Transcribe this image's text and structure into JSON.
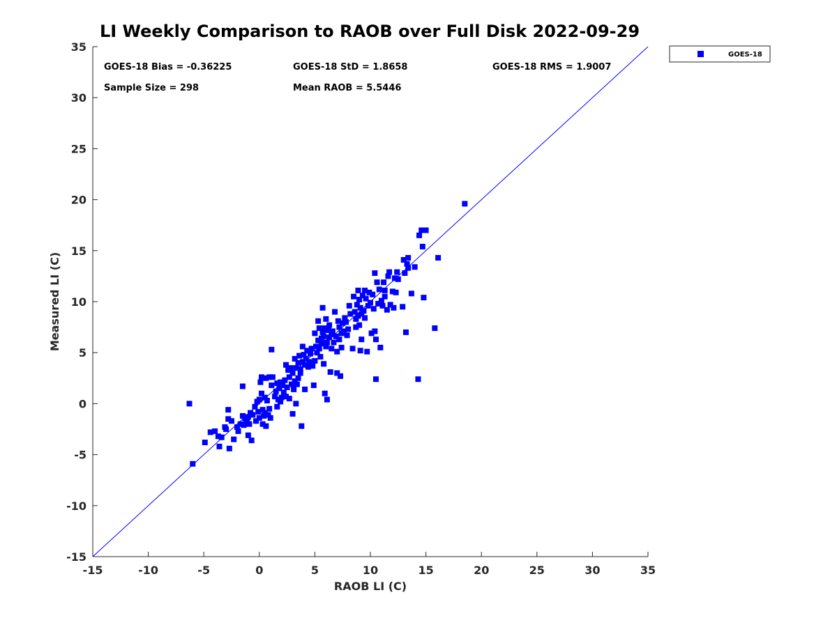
{
  "chart_data": {
    "type": "scatter",
    "title": "LI Weekly Comparison to RAOB over Full Disk 2022-09-29",
    "xlabel": "RAOB LI (C)",
    "ylabel": "Measured LI (C)",
    "xlim": [
      -15,
      35
    ],
    "ylim": [
      -15,
      35
    ],
    "xticks": [
      -15,
      -10,
      -5,
      0,
      5,
      10,
      15,
      20,
      25,
      30,
      35
    ],
    "yticks": [
      -15,
      -10,
      -5,
      0,
      5,
      10,
      15,
      20,
      25,
      30,
      35
    ],
    "grid": false,
    "legend": {
      "position": "outside-top-right",
      "entries": [
        "GOES-18"
      ]
    },
    "reference_line": {
      "from": [
        -15,
        -15
      ],
      "to": [
        35,
        35
      ],
      "color": "#0000ff"
    },
    "marker_color": "#0000ff",
    "annotations": {
      "bias": "GOES-18 Bias = -0.36225",
      "std": "GOES-18 StD = 1.8658",
      "rms": "GOES-18 RMS = 1.9007",
      "sample_size": "Sample Size = 298",
      "mean_raob": "Mean RAOB = 5.5446"
    },
    "series": [
      {
        "name": "GOES-18",
        "points": [
          [
            -6.3,
            0.0
          ],
          [
            -6.0,
            -5.9
          ],
          [
            -4.9,
            -3.8
          ],
          [
            -4.4,
            -2.8
          ],
          [
            -4.0,
            -2.7
          ],
          [
            -3.7,
            -3.2
          ],
          [
            -3.6,
            -4.2
          ],
          [
            -3.4,
            -3.3
          ],
          [
            -3.1,
            -2.3
          ],
          [
            -3.0,
            -2.5
          ],
          [
            -2.8,
            -0.6
          ],
          [
            -2.8,
            -1.5
          ],
          [
            -2.7,
            -4.4
          ],
          [
            -2.5,
            -1.7
          ],
          [
            -2.3,
            -3.5
          ],
          [
            -2.0,
            -2.3
          ],
          [
            -1.9,
            -2.7
          ],
          [
            -1.7,
            -2.0
          ],
          [
            -1.5,
            1.7
          ],
          [
            -1.5,
            -1.2
          ],
          [
            -1.4,
            -2.1
          ],
          [
            -1.3,
            -1.4
          ],
          [
            -1.2,
            -1.9
          ],
          [
            -1.1,
            -1.6
          ],
          [
            -1.0,
            -3.1
          ],
          [
            -1.0,
            -1.3
          ],
          [
            -0.9,
            -2.0
          ],
          [
            -0.8,
            -0.9
          ],
          [
            -0.7,
            -3.6
          ],
          [
            -0.6,
            -1.1
          ],
          [
            -0.4,
            -0.3
          ],
          [
            -0.3,
            -1.7
          ],
          [
            -0.2,
            0.2
          ],
          [
            -0.1,
            -0.8
          ],
          [
            0.0,
            0.4
          ],
          [
            0.0,
            -1.4
          ],
          [
            0.1,
            2.1
          ],
          [
            0.2,
            1.0
          ],
          [
            0.2,
            2.6
          ],
          [
            0.3,
            -0.6
          ],
          [
            0.3,
            -2.0
          ],
          [
            0.4,
            -1.2
          ],
          [
            0.5,
            0.6
          ],
          [
            0.5,
            -0.9
          ],
          [
            0.6,
            2.5
          ],
          [
            0.6,
            -2.2
          ],
          [
            0.7,
            0.3
          ],
          [
            0.8,
            -1.1
          ],
          [
            0.9,
            2.6
          ],
          [
            0.9,
            -0.5
          ],
          [
            1.0,
            -1.4
          ],
          [
            1.1,
            1.8
          ],
          [
            1.1,
            5.3
          ],
          [
            1.2,
            2.6
          ],
          [
            1.4,
            0.7
          ],
          [
            1.5,
            1.2
          ],
          [
            1.6,
            2.0
          ],
          [
            1.6,
            -0.3
          ],
          [
            1.7,
            0.4
          ],
          [
            1.8,
            1.5
          ],
          [
            1.9,
            0.2
          ],
          [
            1.9,
            2.1
          ],
          [
            2.0,
            0.6
          ],
          [
            2.1,
            1.8
          ],
          [
            2.2,
            1.1
          ],
          [
            2.3,
            2.3
          ],
          [
            2.4,
            0.7
          ],
          [
            2.4,
            3.8
          ],
          [
            2.5,
            1.6
          ],
          [
            2.6,
            3.3
          ],
          [
            2.7,
            0.5
          ],
          [
            2.7,
            2.6
          ],
          [
            2.8,
            3.5
          ],
          [
            2.9,
            1.9
          ],
          [
            3.0,
            3.0
          ],
          [
            3.0,
            -1.0
          ],
          [
            3.1,
            1.4
          ],
          [
            3.2,
            2.2
          ],
          [
            3.2,
            4.4
          ],
          [
            3.3,
            0.0
          ],
          [
            3.3,
            3.5
          ],
          [
            3.4,
            1.9
          ],
          [
            3.5,
            4.0
          ],
          [
            3.5,
            2.5
          ],
          [
            3.6,
            4.7
          ],
          [
            3.7,
            3.4
          ],
          [
            3.7,
            3.0
          ],
          [
            3.8,
            -2.2
          ],
          [
            3.9,
            5.6
          ],
          [
            3.9,
            4.1
          ],
          [
            4.0,
            4.8
          ],
          [
            4.1,
            1.4
          ],
          [
            4.1,
            3.8
          ],
          [
            4.2,
            4.4
          ],
          [
            4.3,
            5.2
          ],
          [
            4.4,
            3.6
          ],
          [
            4.5,
            4.1
          ],
          [
            4.6,
            4.9
          ],
          [
            4.7,
            5.4
          ],
          [
            4.8,
            3.7
          ],
          [
            4.9,
            1.8
          ],
          [
            5.0,
            6.9
          ],
          [
            5.0,
            4.2
          ],
          [
            5.1,
            5.6
          ],
          [
            5.2,
            5.0
          ],
          [
            5.3,
            8.1
          ],
          [
            5.3,
            6.2
          ],
          [
            5.4,
            5.4
          ],
          [
            5.4,
            7.4
          ],
          [
            5.5,
            4.6
          ],
          [
            5.6,
            6.4
          ],
          [
            5.6,
            5.9
          ],
          [
            5.7,
            7.0
          ],
          [
            5.7,
            9.4
          ],
          [
            5.8,
            3.9
          ],
          [
            5.8,
            6.6
          ],
          [
            5.9,
            1.0
          ],
          [
            5.9,
            7.4
          ],
          [
            6.0,
            5.6
          ],
          [
            6.0,
            8.3
          ],
          [
            6.1,
            6.0
          ],
          [
            6.1,
            0.4
          ],
          [
            6.2,
            7.2
          ],
          [
            6.3,
            6.5
          ],
          [
            6.3,
            7.7
          ],
          [
            6.4,
            3.1
          ],
          [
            6.5,
            6.8
          ],
          [
            6.5,
            5.4
          ],
          [
            6.6,
            7.1
          ],
          [
            6.7,
            6.0
          ],
          [
            6.8,
            9.0
          ],
          [
            6.9,
            6.6
          ],
          [
            7.0,
            5.1
          ],
          [
            7.0,
            3.0
          ],
          [
            7.1,
            8.1
          ],
          [
            7.2,
            6.3
          ],
          [
            7.2,
            7.5
          ],
          [
            7.3,
            2.7
          ],
          [
            7.4,
            5.5
          ],
          [
            7.4,
            6.9
          ],
          [
            7.5,
            7.9
          ],
          [
            7.6,
            7.1
          ],
          [
            7.7,
            8.4
          ],
          [
            7.8,
            8.0
          ],
          [
            7.9,
            6.7
          ],
          [
            8.0,
            7.3
          ],
          [
            8.1,
            9.6
          ],
          [
            8.2,
            8.8
          ],
          [
            8.4,
            5.4
          ],
          [
            8.5,
            10.5
          ],
          [
            8.6,
            9.0
          ],
          [
            8.7,
            8.3
          ],
          [
            8.7,
            7.5
          ],
          [
            8.8,
            9.7
          ],
          [
            8.9,
            11.1
          ],
          [
            8.9,
            8.6
          ],
          [
            9.0,
            10.2
          ],
          [
            9.0,
            7.7
          ],
          [
            9.1,
            9.4
          ],
          [
            9.1,
            5.2
          ],
          [
            9.2,
            8.8
          ],
          [
            9.2,
            6.3
          ],
          [
            9.3,
            10.6
          ],
          [
            9.4,
            9.1
          ],
          [
            9.5,
            11.1
          ],
          [
            9.5,
            8.4
          ],
          [
            9.6,
            10.3
          ],
          [
            9.7,
            5.1
          ],
          [
            9.8,
            9.6
          ],
          [
            9.9,
            10.9
          ],
          [
            10.0,
            9.9
          ],
          [
            10.1,
            6.9
          ],
          [
            10.2,
            10.7
          ],
          [
            10.3,
            9.3
          ],
          [
            10.4,
            12.8
          ],
          [
            10.4,
            7.1
          ],
          [
            10.5,
            6.3
          ],
          [
            10.5,
            2.4
          ],
          [
            10.6,
            11.9
          ],
          [
            10.7,
            9.8
          ],
          [
            10.8,
            11.2
          ],
          [
            10.9,
            5.5
          ],
          [
            11.0,
            10.1
          ],
          [
            11.1,
            9.6
          ],
          [
            11.2,
            11.9
          ],
          [
            11.3,
            10.5
          ],
          [
            11.3,
            11.1
          ],
          [
            11.5,
            9.2
          ],
          [
            11.6,
            12.5
          ],
          [
            11.7,
            12.9
          ],
          [
            11.8,
            9.7
          ],
          [
            12.0,
            11.0
          ],
          [
            12.1,
            9.4
          ],
          [
            12.2,
            12.3
          ],
          [
            12.3,
            10.9
          ],
          [
            12.4,
            12.9
          ],
          [
            12.5,
            12.2
          ],
          [
            12.9,
            9.5
          ],
          [
            13.0,
            14.1
          ],
          [
            13.1,
            12.8
          ],
          [
            13.2,
            7.0
          ],
          [
            13.3,
            13.7
          ],
          [
            13.4,
            13.3
          ],
          [
            13.4,
            14.3
          ],
          [
            13.7,
            10.8
          ],
          [
            14.0,
            13.4
          ],
          [
            14.3,
            2.4
          ],
          [
            14.4,
            16.5
          ],
          [
            14.6,
            17.0
          ],
          [
            14.7,
            15.4
          ],
          [
            14.8,
            10.4
          ],
          [
            15.0,
            17.0
          ],
          [
            15.8,
            7.4
          ],
          [
            16.1,
            14.3
          ],
          [
            18.5,
            19.6
          ]
        ]
      }
    ]
  }
}
